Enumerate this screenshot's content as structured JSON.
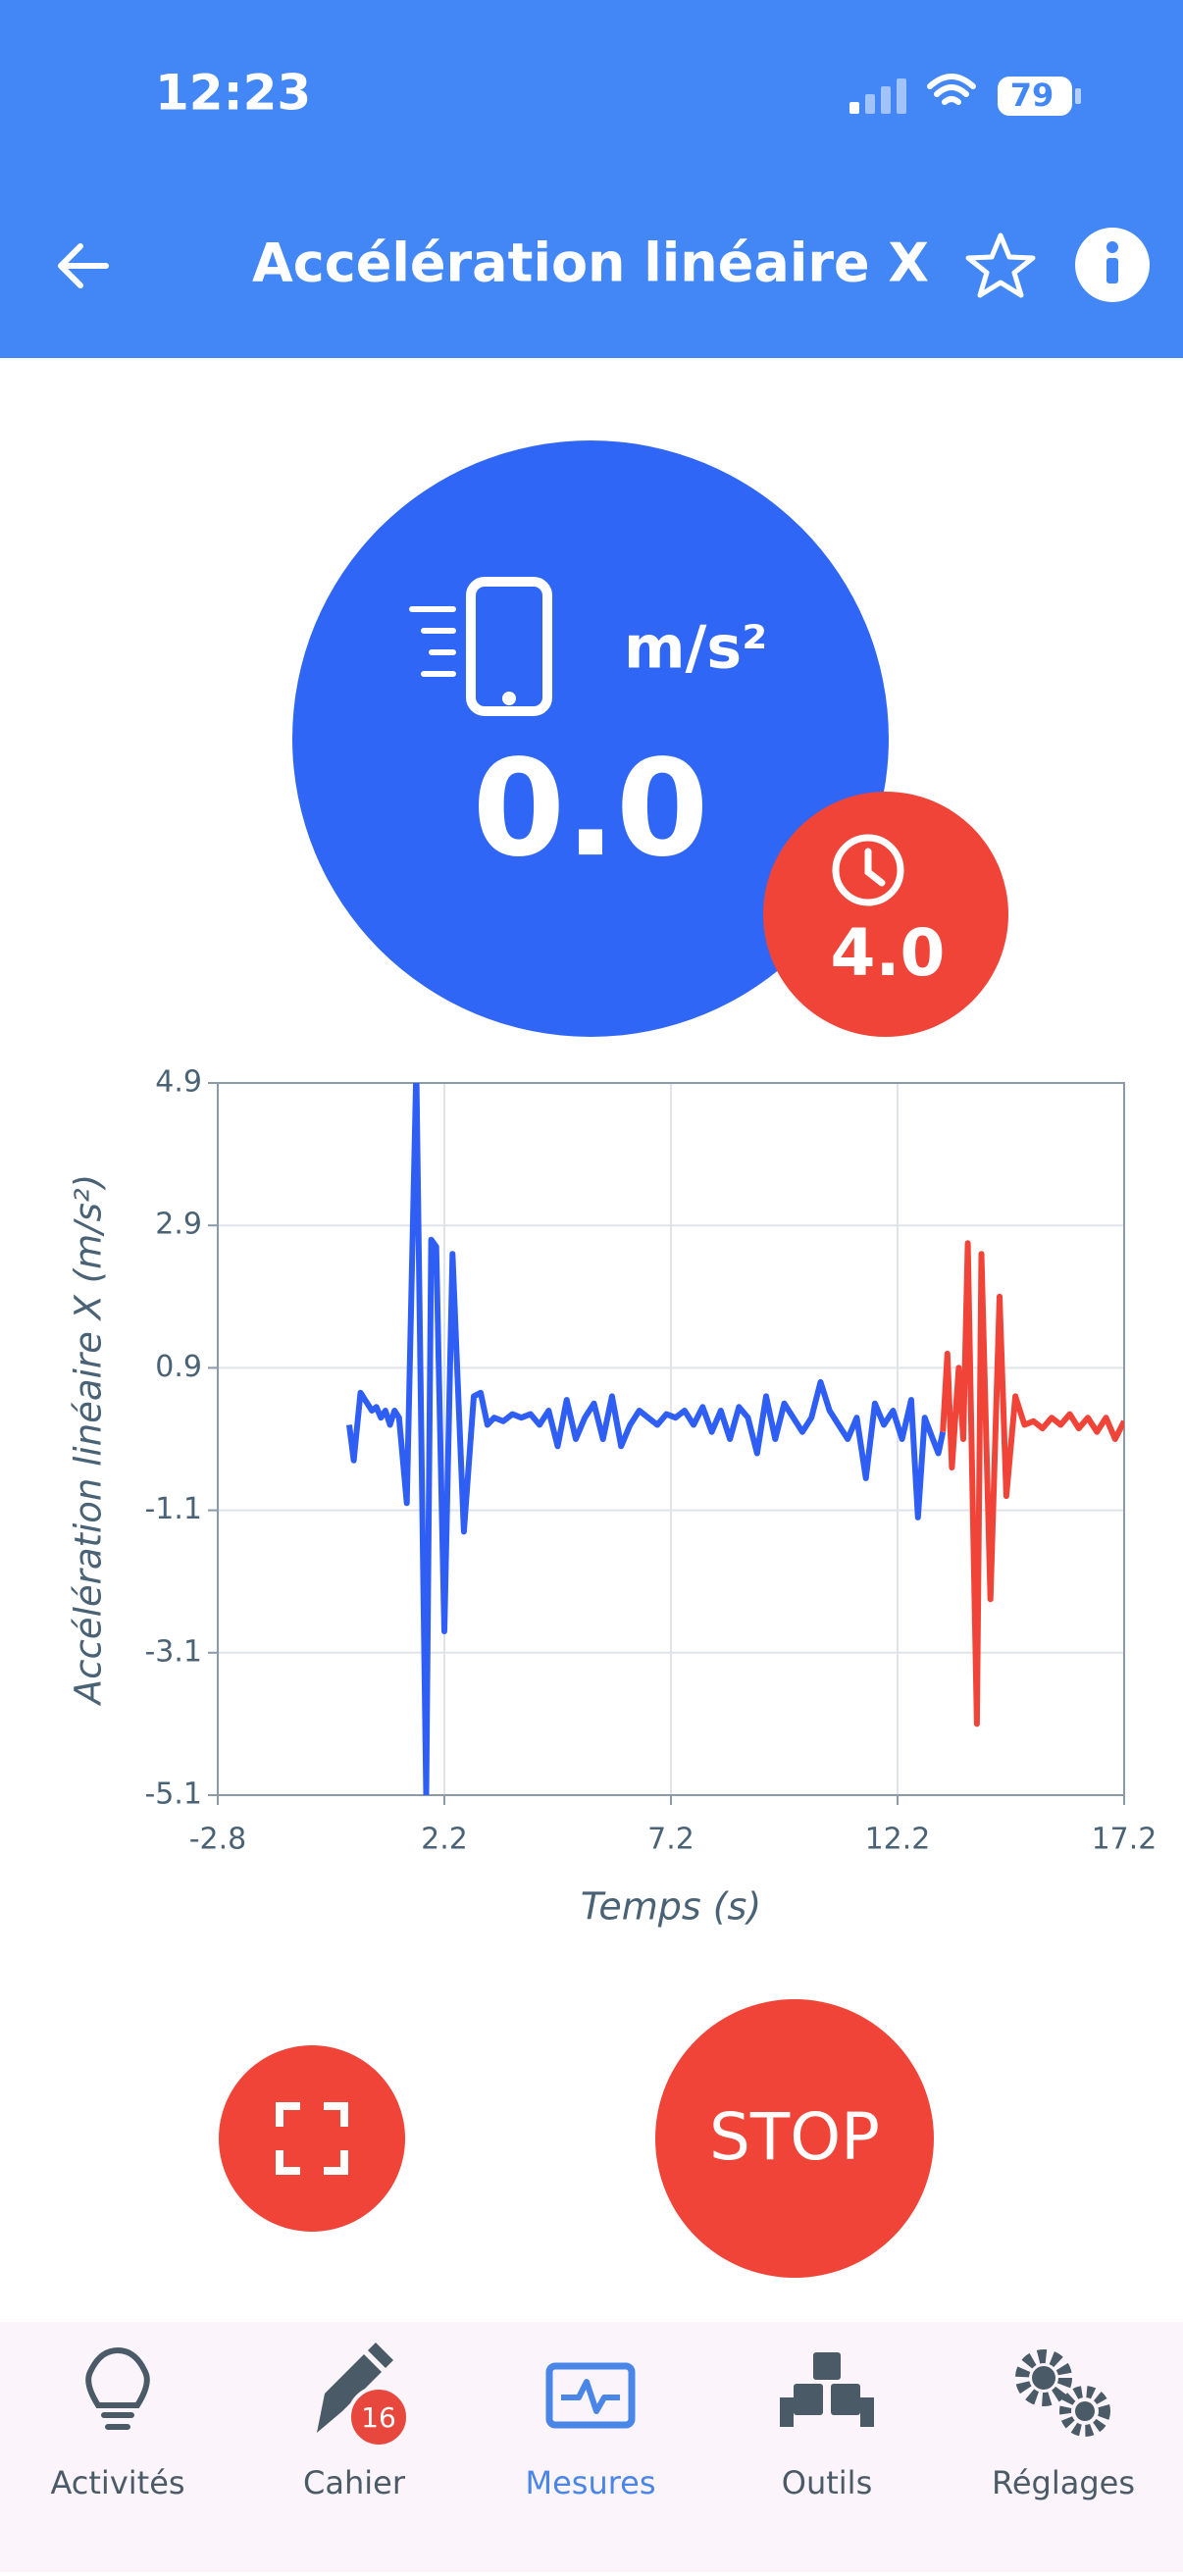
{
  "status_bar": {
    "time": "12:23",
    "battery": "79"
  },
  "header": {
    "title": "Accélération linéaire X"
  },
  "reading": {
    "unit": "m/s²",
    "value": "0.0",
    "timer": "4.0"
  },
  "chart_data": {
    "type": "line",
    "x_label": "Temps (s)",
    "y_label": "Accélération linéaire X (m/s²)",
    "xlim": [
      -2.8,
      17.2
    ],
    "xticks": [
      -2.8,
      2.2,
      7.2,
      12.2,
      17.2
    ],
    "ylim": [
      -5.1,
      4.9
    ],
    "yticks": [
      -5.1,
      -3.1,
      -1.1,
      0.9,
      2.9,
      4.9
    ],
    "grid": true,
    "series": [
      {
        "color": "#2f5ef5",
        "x": [
          0.1,
          0.2,
          0.35,
          0.5,
          0.6,
          0.7,
          0.8,
          0.9,
          1.0,
          1.1,
          1.2,
          1.37,
          1.58,
          1.8,
          1.91,
          2.02,
          2.2,
          2.38,
          2.63,
          2.85,
          3.0,
          3.15,
          3.3,
          3.5,
          3.7,
          3.9,
          4.1,
          4.3,
          4.5,
          4.7,
          4.9,
          5.1,
          5.3,
          5.5,
          5.7,
          5.9,
          6.1,
          6.3,
          6.5,
          6.7,
          6.9,
          7.1,
          7.3,
          7.5,
          7.7,
          7.9,
          8.1,
          8.3,
          8.5,
          8.7,
          8.9,
          9.1,
          9.3,
          9.5,
          9.7,
          9.9,
          10.1,
          10.3,
          10.5,
          10.7,
          10.9,
          11.1,
          11.3,
          11.5,
          11.7,
          11.9,
          12.1,
          12.3,
          12.5,
          12.65,
          12.8,
          12.95,
          13.1,
          13.2
        ],
        "values": [
          0.1,
          -0.4,
          0.55,
          0.4,
          0.3,
          0.35,
          0.2,
          0.3,
          0.1,
          0.3,
          0.2,
          -1.0,
          5.1,
          -5.1,
          2.7,
          2.6,
          -2.8,
          2.5,
          -1.4,
          0.5,
          0.55,
          0.1,
          0.2,
          0.15,
          0.25,
          0.2,
          0.25,
          0.1,
          0.3,
          -0.2,
          0.45,
          -0.1,
          0.2,
          0.4,
          -0.1,
          0.5,
          -0.2,
          0.1,
          0.3,
          0.2,
          0.1,
          0.25,
          0.2,
          0.3,
          0.1,
          0.35,
          0.0,
          0.3,
          -0.1,
          0.35,
          0.2,
          -0.3,
          0.5,
          -0.1,
          0.4,
          0.2,
          0.0,
          0.2,
          0.7,
          0.3,
          0.1,
          -0.1,
          0.2,
          -0.65,
          0.4,
          0.1,
          0.3,
          -0.1,
          0.45,
          -1.2,
          0.2,
          -0.05,
          -0.3,
          0.0
        ]
      },
      {
        "color": "#f04438",
        "x": [
          13.2,
          13.3,
          13.4,
          13.55,
          13.65,
          13.75,
          13.95,
          14.05,
          14.25,
          14.45,
          14.6,
          14.8,
          15.0,
          15.2,
          15.4,
          15.6,
          15.8,
          16.0,
          16.2,
          16.4,
          16.6,
          16.8,
          17.0,
          17.2
        ],
        "values": [
          0.0,
          1.1,
          -0.5,
          0.9,
          -0.1,
          2.65,
          -4.1,
          2.5,
          -2.35,
          1.9,
          -0.9,
          0.5,
          0.1,
          0.15,
          0.05,
          0.2,
          0.1,
          0.25,
          0.05,
          0.2,
          0.0,
          0.2,
          -0.1,
          0.15
        ]
      }
    ]
  },
  "controls": {
    "stop": "STOP"
  },
  "tab_bar": {
    "active": 2,
    "tabs": [
      {
        "label": "Activités"
      },
      {
        "label": "Cahier",
        "badge": "16"
      },
      {
        "label": "Mesures"
      },
      {
        "label": "Outils"
      },
      {
        "label": "Réglages"
      }
    ]
  }
}
